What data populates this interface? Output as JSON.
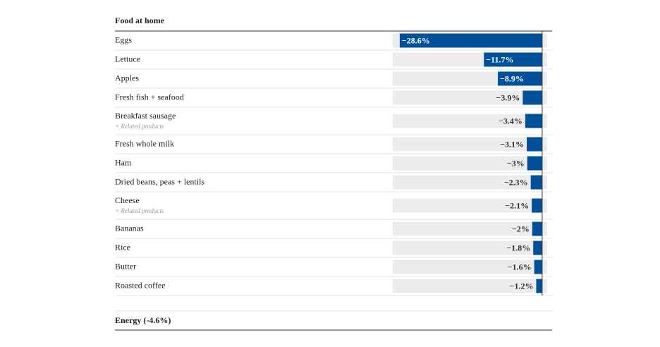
{
  "chart_data": {
    "type": "bar",
    "orientation": "horizontal",
    "title": "Food at home",
    "categories": [
      "Eggs",
      "Lettuce",
      "Apples",
      "Fresh fish + seafood",
      "Breakfast sausage",
      "Fresh whole milk",
      "Ham",
      "Dried beans, peas + lentils",
      "Cheese",
      "Bananas",
      "Rice",
      "Butter",
      "Roasted coffee"
    ],
    "sublabels": [
      null,
      null,
      null,
      null,
      "+ Related products",
      null,
      null,
      null,
      "+ Related products",
      null,
      null,
      null,
      null
    ],
    "values": [
      -28.6,
      -11.7,
      -8.9,
      -3.9,
      -3.4,
      -3.1,
      -3,
      -2.3,
      -2.1,
      -2,
      -1.8,
      -1.6,
      -1.2
    ],
    "value_labels": [
      "−28.6%",
      "−11.7%",
      "−8.9%",
      "−3.9%",
      "−3.4%",
      "−3.1%",
      "−3%",
      "−2.3%",
      "−2.1%",
      "−2%",
      "−1.8%",
      "−1.6%",
      "−1.2%"
    ],
    "color": "#00519a",
    "xlim": [
      -30,
      1
    ]
  },
  "footer": "Energy (-4.6%)"
}
